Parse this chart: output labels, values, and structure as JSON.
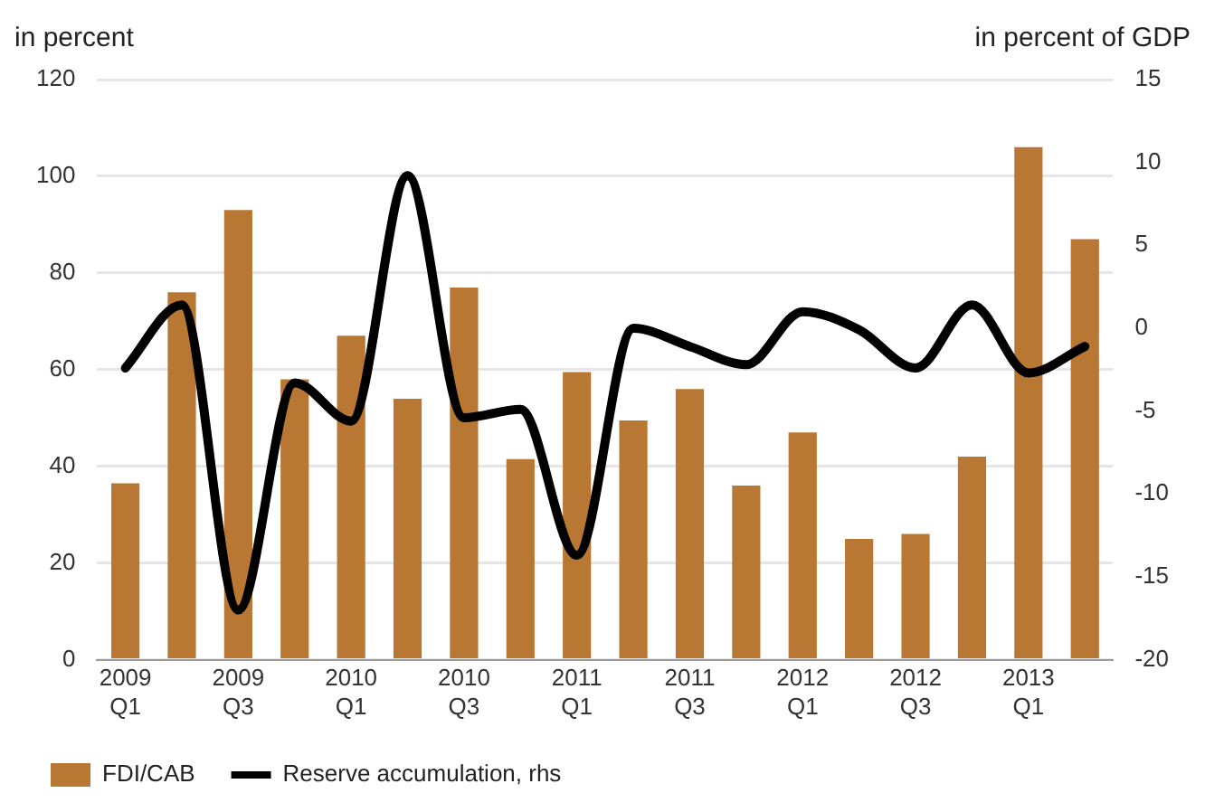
{
  "chart_data": {
    "type": "bar",
    "ylabel": "in percent",
    "y2label": "in percent of GDP",
    "categories": [
      "2009\nQ1",
      null,
      "2009\nQ3",
      null,
      "2010\nQ1",
      null,
      "2010\nQ3",
      null,
      "2011\nQ1",
      null,
      "2011\nQ3",
      null,
      "2012\nQ1",
      null,
      "2012\nQ3",
      null,
      "2013\nQ1",
      null
    ],
    "series": [
      {
        "name": "FDI/CAB",
        "color": "#b87733",
        "values": [
          36.5,
          76,
          93,
          58,
          67,
          54,
          77,
          41.5,
          59.5,
          49.5,
          56,
          36,
          47,
          25,
          26,
          42,
          106,
          87
        ]
      },
      {
        "name": "Reserve accumulation, rhs",
        "type": "line",
        "axis": "y2",
        "color": "#000000",
        "values": [
          -2.4,
          1.4,
          -17,
          -3.3,
          -5.6,
          9.2,
          -5.4,
          -4.9,
          -13.7,
          0,
          -1.1,
          -2.2,
          1,
          -0.1,
          -2.4,
          1.4,
          -2.7,
          -1.1
        ]
      }
    ],
    "ylim": [
      0,
      120
    ],
    "yticks": [
      0,
      20,
      40,
      60,
      80,
      100,
      120
    ],
    "y2lim": [
      -20,
      15
    ],
    "y2ticks": [
      -20,
      -15,
      -10,
      -5,
      0,
      5,
      10,
      15
    ],
    "grid": "y",
    "legend": "bottom left",
    "marker": "none",
    "line_style": "solid"
  }
}
